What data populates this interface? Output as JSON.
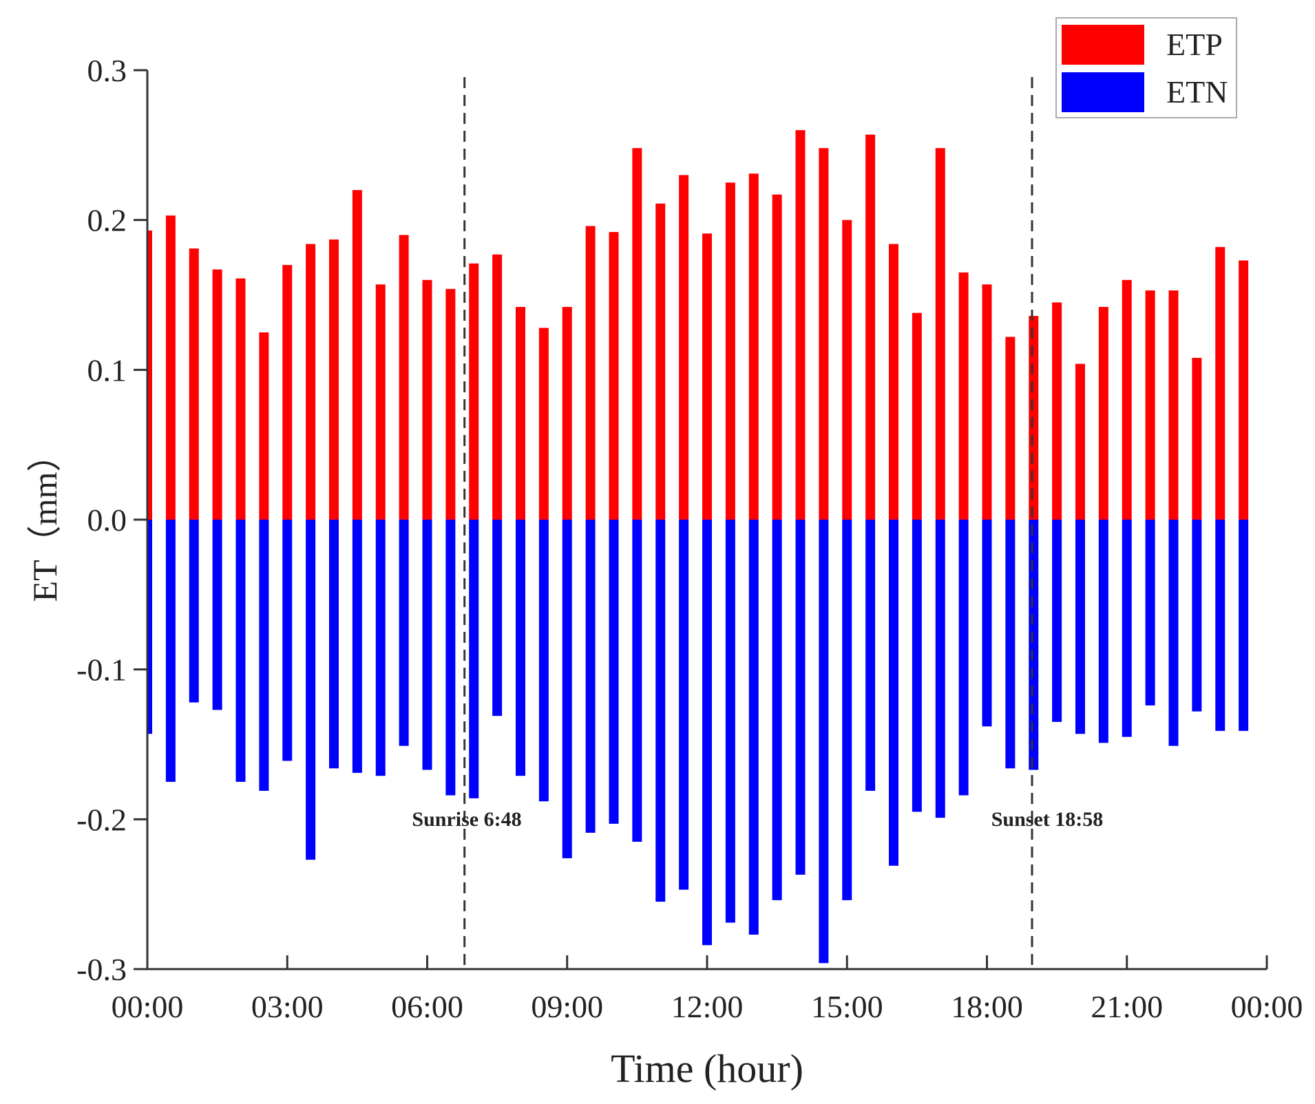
{
  "chart_data": {
    "type": "bar",
    "title": "",
    "xlabel": "Time (hour)",
    "ylabel": "ET（mm）",
    "ylim": [
      -0.3,
      0.3
    ],
    "xlim": [
      0,
      24
    ],
    "y_ticks": [
      0.3,
      0.2,
      0.1,
      0.0,
      -0.1,
      -0.2,
      -0.3
    ],
    "y_tick_labels": [
      "0.3",
      "0.2",
      "0.1",
      "0.0",
      "-0.1",
      "-0.2",
      "-0.3"
    ],
    "x_ticks": [
      0,
      3,
      6,
      9,
      12,
      15,
      18,
      21,
      24
    ],
    "x_tick_labels": [
      "00:00",
      "03:00",
      "06:00",
      "09:00",
      "12:00",
      "15:00",
      "18:00",
      "21:00",
      "00:00"
    ],
    "x": [
      0,
      0.5,
      1,
      1.5,
      2,
      2.5,
      3,
      3.5,
      4,
      4.5,
      5,
      5.5,
      6,
      6.5,
      7,
      7.5,
      8,
      8.5,
      9,
      9.5,
      10,
      10.5,
      11,
      11.5,
      12,
      12.5,
      13,
      13.5,
      14,
      14.5,
      15,
      15.5,
      16,
      16.5,
      17,
      17.5,
      18,
      18.5,
      19,
      19.5,
      20,
      20.5,
      21,
      21.5,
      22,
      22.5,
      23,
      23.5
    ],
    "series": [
      {
        "name": "ETP",
        "color": "#ff0000",
        "values": [
          0.193,
          0.203,
          0.181,
          0.167,
          0.161,
          0.125,
          0.17,
          0.184,
          0.187,
          0.22,
          0.157,
          0.19,
          0.16,
          0.154,
          0.171,
          0.177,
          0.142,
          0.128,
          0.142,
          0.196,
          0.192,
          0.248,
          0.211,
          0.23,
          0.191,
          0.225,
          0.231,
          0.217,
          0.26,
          0.248,
          0.2,
          0.257,
          0.184,
          0.138,
          0.248,
          0.165,
          0.157,
          0.122,
          0.136,
          0.145,
          0.104,
          0.142,
          0.16,
          0.153,
          0.153,
          0.108,
          0.182,
          0.173
        ]
      },
      {
        "name": "ETN",
        "color": "#0000ff",
        "values": [
          -0.143,
          -0.175,
          -0.122,
          -0.127,
          -0.175,
          -0.181,
          -0.161,
          -0.227,
          -0.166,
          -0.169,
          -0.171,
          -0.151,
          -0.167,
          -0.184,
          -0.186,
          -0.131,
          -0.171,
          -0.188,
          -0.226,
          -0.209,
          -0.203,
          -0.215,
          -0.255,
          -0.247,
          -0.284,
          -0.269,
          -0.277,
          -0.254,
          -0.237,
          -0.296,
          -0.254,
          -0.181,
          -0.231,
          -0.195,
          -0.199,
          -0.184,
          -0.138,
          -0.166,
          -0.167,
          -0.135,
          -0.143,
          -0.149,
          -0.145,
          -0.124,
          -0.151,
          -0.128,
          -0.141,
          -0.141
        ]
      }
    ],
    "annotations": [
      {
        "label": "Sunrise 6:48",
        "x": 6.8
      },
      {
        "label": "Sunset 18:58",
        "x": 18.967
      }
    ],
    "legend": {
      "position": "top-right",
      "entries": [
        "ETP",
        "ETN"
      ]
    },
    "grid": false
  }
}
